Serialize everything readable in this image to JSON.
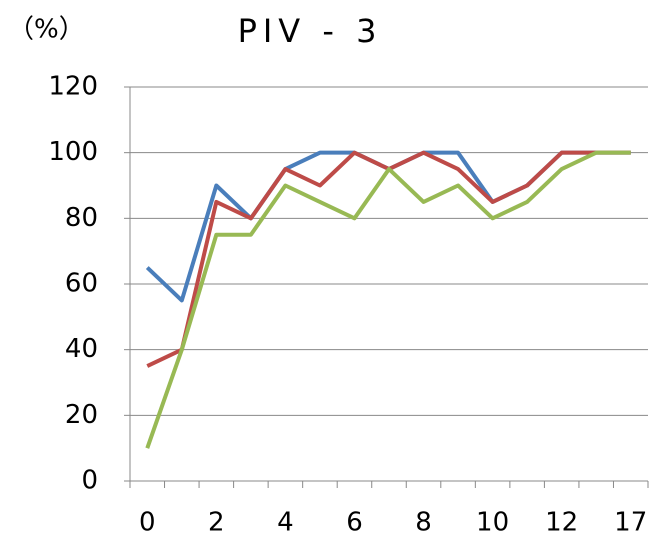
{
  "chart_data": {
    "type": "line",
    "title": "PIV - 3",
    "y_label": "（%）",
    "categories": [
      "0",
      null,
      "2",
      null,
      "4",
      null,
      "6",
      null,
      "8",
      null,
      "10",
      null,
      "12",
      null,
      "17"
    ],
    "series": [
      {
        "color": "#4a7ebb",
        "values": [
          65,
          55,
          90,
          80,
          95,
          100,
          100,
          95,
          100,
          100,
          85,
          90,
          100,
          100,
          100
        ]
      },
      {
        "color": "#be4b48",
        "values": [
          35,
          40,
          85,
          80,
          95,
          90,
          100,
          95,
          100,
          95,
          85,
          90,
          100,
          100,
          100
        ]
      },
      {
        "color": "#98b954",
        "values": [
          10,
          40,
          75,
          75,
          90,
          85,
          80,
          95,
          85,
          90,
          80,
          85,
          95,
          100,
          100
        ]
      }
    ],
    "ylim": [
      0,
      120
    ],
    "yticks": [
      0,
      20,
      40,
      60,
      80,
      100,
      120
    ],
    "grid": true
  }
}
